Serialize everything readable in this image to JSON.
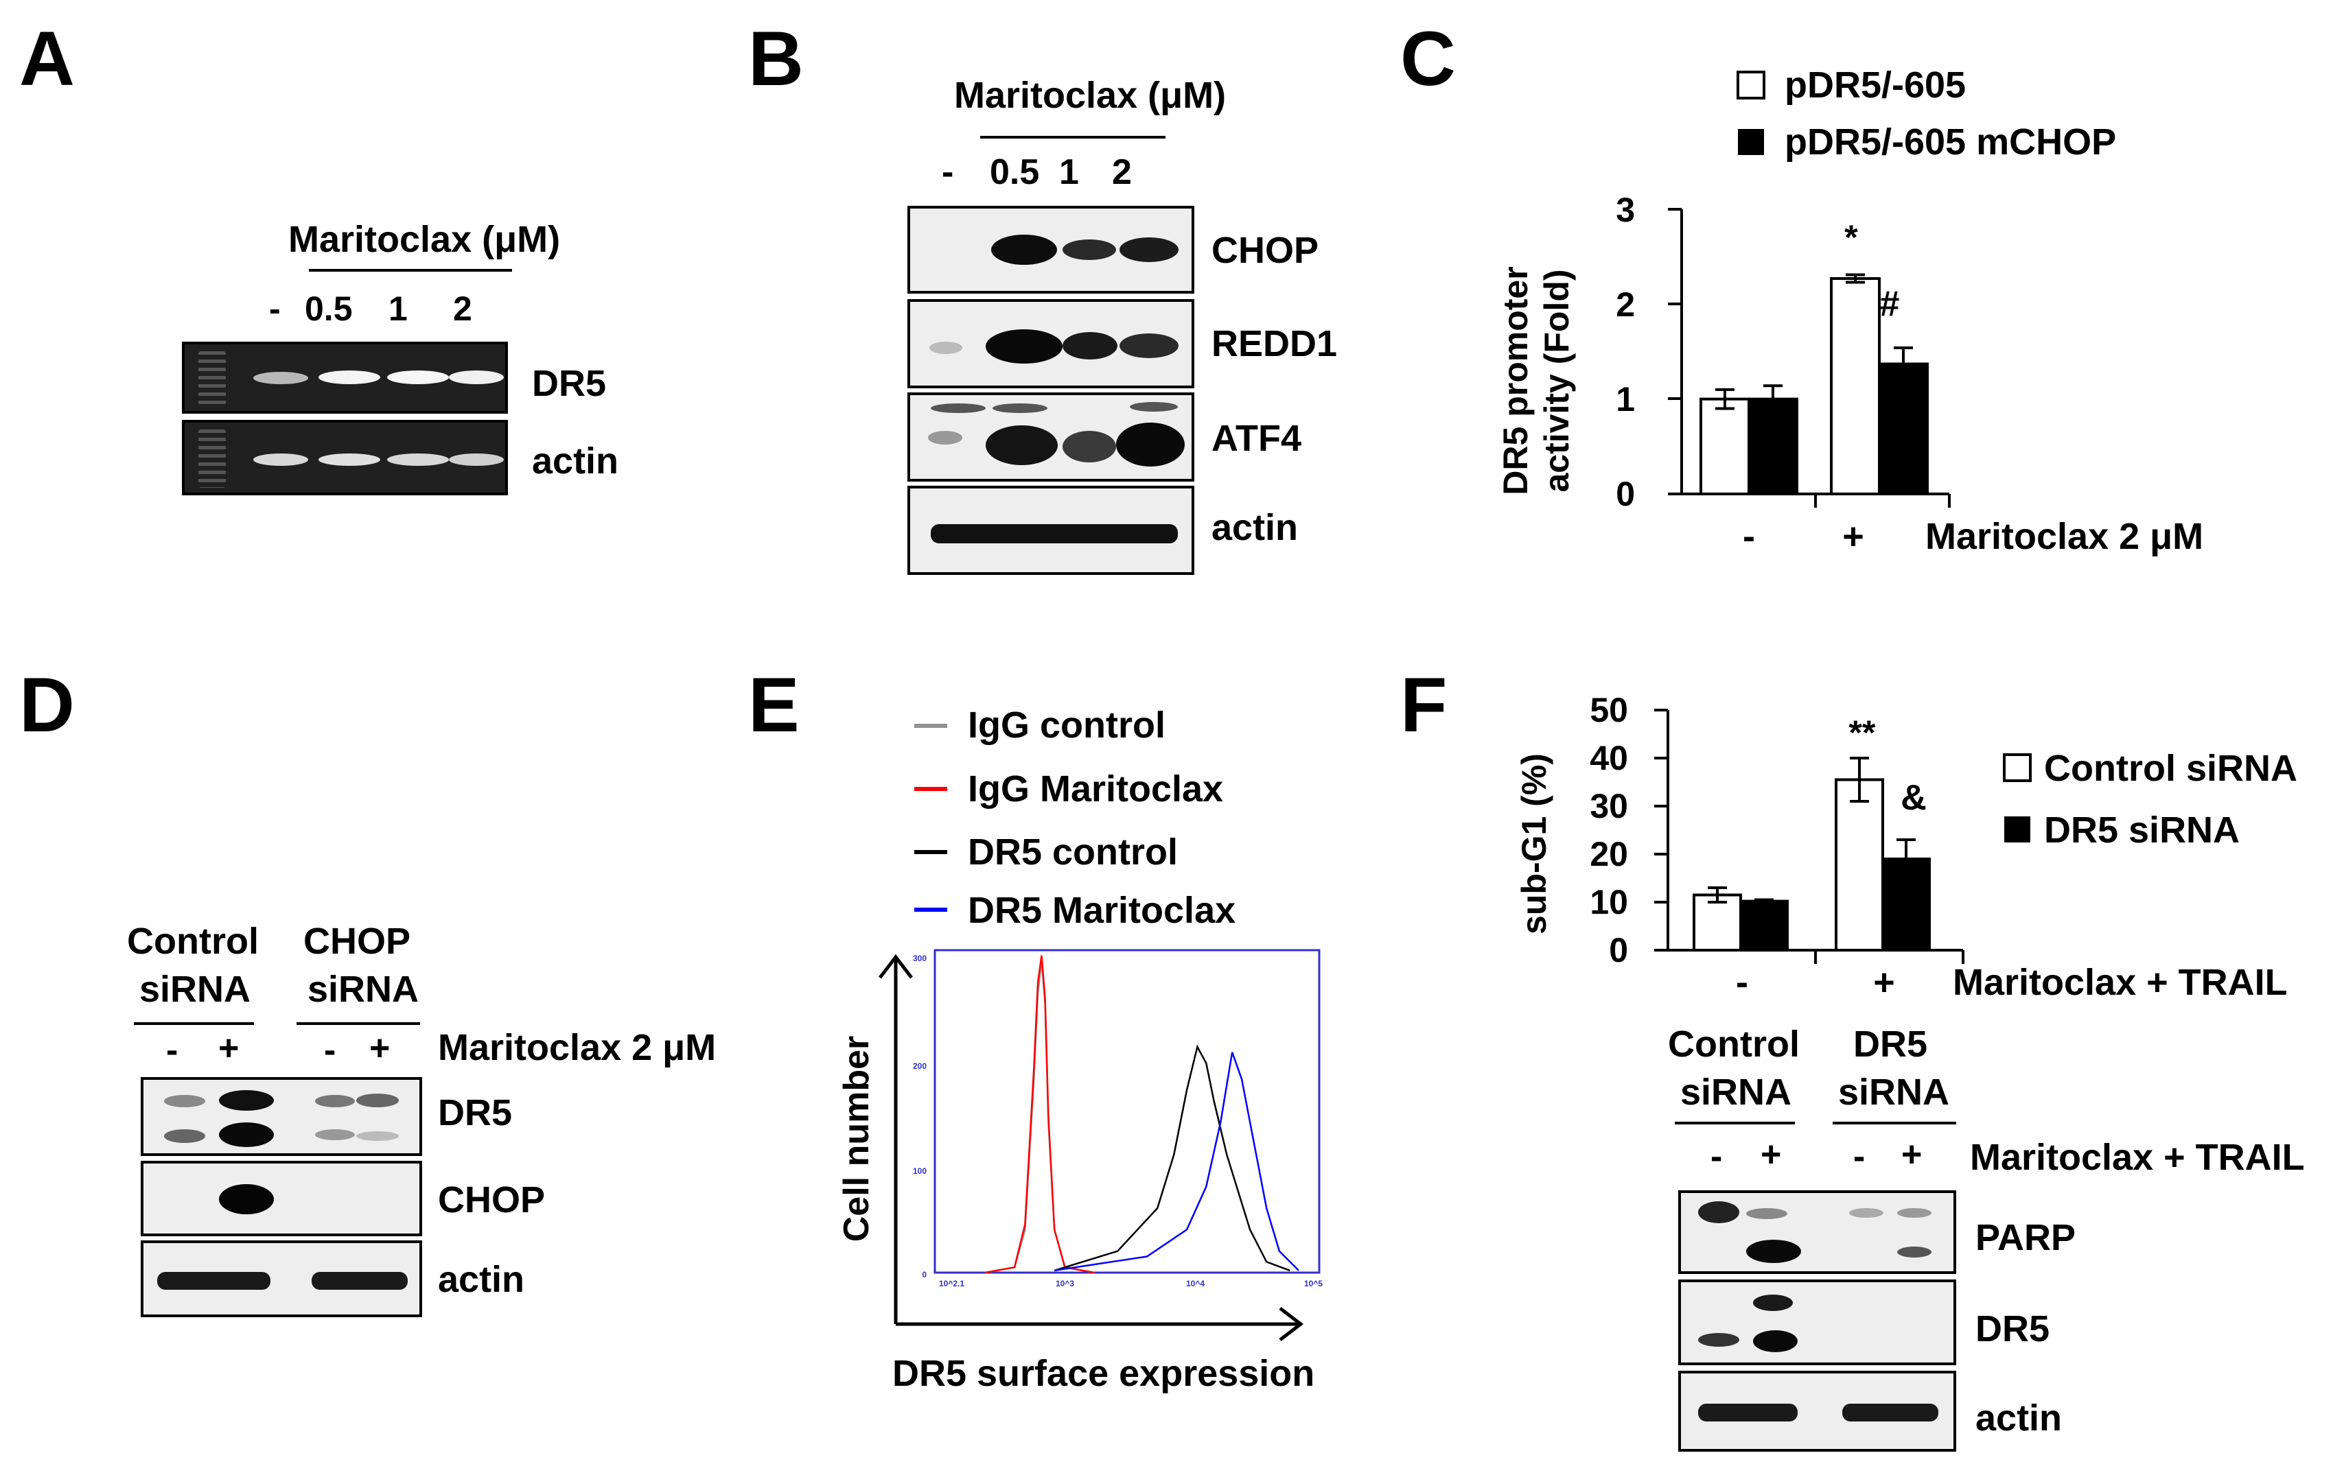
{
  "panel_A": {
    "letter": "A",
    "treatment": "Maritoclax (μM)",
    "lanes": [
      "-",
      "0.5",
      "1",
      "2"
    ],
    "rows": [
      "DR5",
      "actin"
    ]
  },
  "panel_B": {
    "letter": "B",
    "treatment": "Maritoclax (μM)",
    "lanes": [
      "-",
      "0.5",
      "1",
      "2"
    ],
    "rows": [
      "CHOP",
      "REDD1",
      "ATF4",
      "actin"
    ]
  },
  "panel_C": {
    "letter": "C",
    "legend": [
      "pDR5/-605",
      "pDR5/-605 mCHOP"
    ],
    "ylabel_line1": "DR5 promoter",
    "ylabel_line2": "activity (Fold)",
    "yticks": [
      "0",
      "1",
      "2",
      "3"
    ],
    "xticks": [
      "-",
      "+"
    ],
    "xlabel": "Maritoclax  2 μM",
    "annot_star": "*",
    "annot_hash": "#"
  },
  "panel_D": {
    "letter": "D",
    "group1_l1": "Control",
    "group1_l2": "siRNA",
    "group2_l1": "CHOP",
    "group2_l2": "siRNA",
    "lanes": [
      "-",
      "+",
      "-",
      "+"
    ],
    "treatment": "Maritoclax 2 μM",
    "rows": [
      "DR5",
      "CHOP",
      "actin"
    ]
  },
  "panel_E": {
    "letter": "E",
    "legend": [
      "IgG control",
      "IgG Maritoclax",
      "DR5 control",
      "DR5 Maritoclax"
    ],
    "legend_colors": [
      "#909090",
      "#ff0000",
      "#000000",
      "#0000ff"
    ],
    "ylabel": "Cell number",
    "xlabel": "DR5 surface expression",
    "yticks": [
      "0",
      "100",
      "200",
      "300"
    ],
    "xticks": [
      "10^2.1",
      "10^3",
      "10^4",
      "10^5"
    ]
  },
  "panel_F": {
    "letter": "F",
    "legend": [
      "Control siRNA",
      "DR5 siRNA"
    ],
    "ylabel": "sub-G1 (%)",
    "yticks": [
      "0",
      "10",
      "20",
      "30",
      "40",
      "50"
    ],
    "xticks": [
      "-",
      "+"
    ],
    "xlabel": "Maritoclax + TRAIL",
    "annot_2star": "**",
    "annot_amp": "&",
    "group1_l1": "Control",
    "group1_l2": "siRNA",
    "group2_l1": "DR5",
    "group2_l2": "siRNA",
    "lanes": [
      "-",
      "+",
      "-",
      "+"
    ],
    "treatment": "Maritoclax + TRAIL",
    "rows": [
      "PARP",
      "DR5",
      "actin"
    ]
  },
  "chart_data": [
    {
      "type": "bar",
      "panel": "C",
      "categories": [
        "-",
        "+"
      ],
      "series": [
        {
          "name": "pDR5/-605",
          "values": [
            1.0,
            2.27
          ],
          "errors": [
            0.1,
            0.04
          ],
          "color": "#ffffff"
        },
        {
          "name": "pDR5/-605 mCHOP",
          "values": [
            1.0,
            1.37
          ],
          "errors": [
            0.14,
            0.17
          ],
          "color": "#000000"
        }
      ],
      "ylabel": "DR5 promoter activity (Fold)",
      "xlabel": "Maritoclax  2 μM",
      "ylim": [
        0,
        3
      ],
      "annotations": [
        {
          "text": "*",
          "category": "+",
          "series": "pDR5/-605"
        },
        {
          "text": "#",
          "category": "+",
          "series": "pDR5/-605 mCHOP"
        }
      ]
    },
    {
      "type": "bar",
      "panel": "F",
      "categories": [
        "-",
        "+"
      ],
      "series": [
        {
          "name": "Control siRNA",
          "values": [
            11.5,
            35.5
          ],
          "errors": [
            1.5,
            4.5
          ],
          "color": "#ffffff"
        },
        {
          "name": "DR5 siRNA",
          "values": [
            10.2,
            19.0
          ],
          "errors": [
            0.3,
            4.0
          ],
          "color": "#000000"
        }
      ],
      "ylabel": "sub-G1 (%)",
      "xlabel": "Maritoclax + TRAIL",
      "ylim": [
        0,
        50
      ],
      "annotations": [
        {
          "text": "**",
          "category": "+",
          "series": "Control siRNA"
        },
        {
          "text": "&",
          "category": "+",
          "series": "DR5 siRNA"
        }
      ]
    },
    {
      "type": "line",
      "panel": "E",
      "xscale": "log",
      "xlim": [
        125,
        100000
      ],
      "ylim": [
        0,
        300
      ],
      "xlabel": "DR5 surface expression",
      "ylabel": "Cell number",
      "series": [
        {
          "name": "IgG control",
          "color": "#909090",
          "x": [
            300,
            500,
            600,
            700,
            750,
            800,
            850,
            900,
            1000,
            1200,
            2000
          ],
          "y": [
            0,
            5,
            40,
            180,
            260,
            290,
            250,
            140,
            40,
            5,
            0
          ]
        },
        {
          "name": "IgG Maritoclax",
          "color": "#ff0000",
          "x": [
            300,
            500,
            600,
            700,
            750,
            800,
            850,
            900,
            1000,
            1200,
            2000
          ],
          "y": [
            0,
            5,
            45,
            190,
            270,
            295,
            255,
            145,
            40,
            5,
            0
          ]
        },
        {
          "name": "DR5 control",
          "color": "#000000",
          "x": [
            1000,
            3000,
            6000,
            8000,
            10000,
            12000,
            14000,
            16000,
            20000,
            30000,
            40000,
            60000
          ],
          "y": [
            2,
            20,
            60,
            110,
            170,
            210,
            195,
            160,
            110,
            40,
            10,
            2
          ]
        },
        {
          "name": "DR5 Maritoclax",
          "color": "#0000ff",
          "x": [
            1000,
            5000,
            10000,
            14000,
            18000,
            22000,
            26000,
            30000,
            40000,
            50000,
            70000
          ],
          "y": [
            2,
            15,
            40,
            80,
            140,
            205,
            180,
            140,
            60,
            20,
            2
          ]
        }
      ]
    }
  ]
}
